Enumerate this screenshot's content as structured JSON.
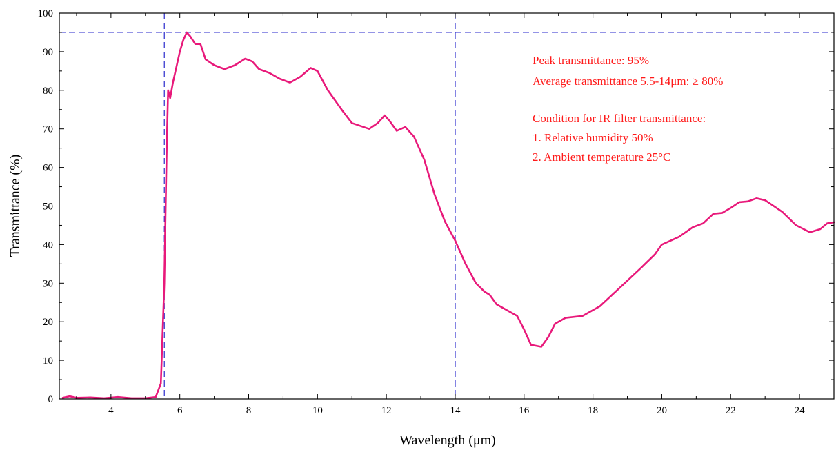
{
  "chart_data": {
    "type": "line",
    "xlabel": "Wavelength (μm)",
    "ylabel": "Transmittance (%)",
    "xlim": [
      2.5,
      25
    ],
    "ylim": [
      0,
      100
    ],
    "x_ticks": [
      4,
      6,
      8,
      10,
      12,
      14,
      16,
      18,
      20,
      22,
      24
    ],
    "y_ticks": [
      0,
      10,
      20,
      30,
      40,
      50,
      60,
      70,
      80,
      90,
      100
    ],
    "grid": false,
    "series": [
      {
        "color": "#e8197a",
        "points": [
          [
            2.6,
            0.3
          ],
          [
            2.8,
            0.7
          ],
          [
            3.0,
            0.3
          ],
          [
            3.4,
            0.4
          ],
          [
            3.8,
            0.2
          ],
          [
            4.2,
            0.5
          ],
          [
            4.6,
            0.2
          ],
          [
            5.0,
            0.2
          ],
          [
            5.3,
            0.5
          ],
          [
            5.45,
            4
          ],
          [
            5.55,
            30
          ],
          [
            5.62,
            65
          ],
          [
            5.66,
            80
          ],
          [
            5.72,
            78
          ],
          [
            5.8,
            82
          ],
          [
            5.9,
            86
          ],
          [
            6.0,
            90
          ],
          [
            6.1,
            93
          ],
          [
            6.2,
            95
          ],
          [
            6.3,
            94
          ],
          [
            6.45,
            92
          ],
          [
            6.6,
            92
          ],
          [
            6.75,
            88
          ],
          [
            7.0,
            86.5
          ],
          [
            7.3,
            85.5
          ],
          [
            7.6,
            86.5
          ],
          [
            7.9,
            88.2
          ],
          [
            8.1,
            87.5
          ],
          [
            8.3,
            85.5
          ],
          [
            8.6,
            84.5
          ],
          [
            8.9,
            83
          ],
          [
            9.2,
            82
          ],
          [
            9.5,
            83.5
          ],
          [
            9.8,
            85.8
          ],
          [
            10.0,
            85
          ],
          [
            10.3,
            80
          ],
          [
            10.7,
            75
          ],
          [
            11.0,
            71.5
          ],
          [
            11.5,
            70
          ],
          [
            11.75,
            71.5
          ],
          [
            11.95,
            73.5
          ],
          [
            12.1,
            72
          ],
          [
            12.3,
            69.5
          ],
          [
            12.55,
            70.5
          ],
          [
            12.8,
            68
          ],
          [
            13.1,
            62
          ],
          [
            13.4,
            53
          ],
          [
            13.7,
            46
          ],
          [
            14.0,
            41
          ],
          [
            14.3,
            35
          ],
          [
            14.6,
            30
          ],
          [
            14.85,
            27.8
          ],
          [
            15.0,
            27
          ],
          [
            15.2,
            24.5
          ],
          [
            15.5,
            23
          ],
          [
            15.8,
            21.5
          ],
          [
            16.0,
            18
          ],
          [
            16.2,
            14
          ],
          [
            16.5,
            13.5
          ],
          [
            16.7,
            16
          ],
          [
            16.9,
            19.5
          ],
          [
            17.2,
            21
          ],
          [
            17.7,
            21.5
          ],
          [
            18.2,
            24
          ],
          [
            18.8,
            29
          ],
          [
            19.4,
            34
          ],
          [
            19.8,
            37.5
          ],
          [
            20.0,
            40
          ],
          [
            20.5,
            42
          ],
          [
            20.9,
            44.5
          ],
          [
            21.2,
            45.5
          ],
          [
            21.5,
            48
          ],
          [
            21.75,
            48.2
          ],
          [
            22.0,
            49.5
          ],
          [
            22.25,
            51
          ],
          [
            22.5,
            51.2
          ],
          [
            22.75,
            52
          ],
          [
            23.0,
            51.5
          ],
          [
            23.5,
            48.5
          ],
          [
            23.9,
            45
          ],
          [
            24.3,
            43.2
          ],
          [
            24.6,
            44
          ],
          [
            24.8,
            45.5
          ],
          [
            25.0,
            45.8
          ]
        ]
      }
    ],
    "reference_lines": [
      {
        "orientation": "horizontal",
        "value": 95,
        "color": "#2a2acc",
        "style": "dashed"
      },
      {
        "orientation": "vertical",
        "value": 5.55,
        "color": "#2a2acc",
        "style": "dashed"
      },
      {
        "orientation": "vertical",
        "value": 14,
        "color": "#2a2acc",
        "style": "dashed"
      }
    ],
    "annotations": [
      "Peak transmittance: 95%",
      "Average transmittance 5.5-14μm: ≥  80%",
      "Condition for IR filter transmittance:",
      "1. Relative humidity 50%",
      "2. Ambient temperature 25°C"
    ],
    "annotation_color": "#ff1a1a"
  }
}
